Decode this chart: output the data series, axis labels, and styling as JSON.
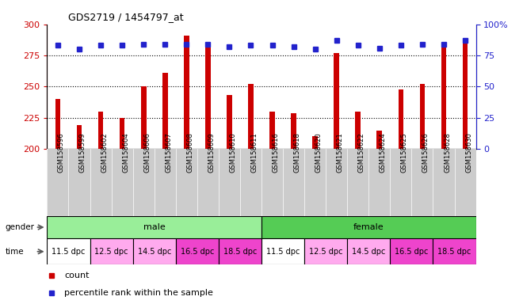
{
  "title": "GDS2719 / 1454797_at",
  "samples": [
    "GSM158596",
    "GSM158599",
    "GSM158602",
    "GSM158604",
    "GSM158606",
    "GSM158607",
    "GSM158608",
    "GSM158609",
    "GSM158610",
    "GSM158611",
    "GSM158616",
    "GSM158618",
    "GSM158620",
    "GSM158621",
    "GSM158622",
    "GSM158624",
    "GSM158625",
    "GSM158626",
    "GSM158628",
    "GSM158630"
  ],
  "counts": [
    240,
    219,
    230,
    225,
    250,
    261,
    291,
    285,
    243,
    252,
    230,
    229,
    210,
    277,
    230,
    215,
    248,
    252,
    285,
    288
  ],
  "percentiles": [
    83,
    80,
    83,
    83,
    84,
    84,
    84,
    84,
    82,
    83,
    83,
    82,
    80,
    87,
    83,
    81,
    83,
    84,
    84,
    87
  ],
  "ylim_left": [
    200,
    300
  ],
  "ylim_right": [
    0,
    100
  ],
  "yticks_left": [
    200,
    225,
    250,
    275,
    300
  ],
  "yticks_right": [
    0,
    25,
    50,
    75,
    100
  ],
  "bar_color": "#cc0000",
  "dot_color": "#2222cc",
  "male_color": "#99ee99",
  "female_color": "#55cc55",
  "bg_color": "#ffffff",
  "xticklabel_bg": "#cccccc",
  "time_colors": [
    "#ffffff",
    "#ffaaee",
    "#ffaaee",
    "#ee44cc",
    "#ee44cc",
    "#ffffff",
    "#ffaaee",
    "#ffaaee",
    "#ee44cc",
    "#ee44cc"
  ],
  "time_labels": [
    "11.5 dpc",
    "12.5 dpc",
    "14.5 dpc",
    "16.5 dpc",
    "18.5 dpc",
    "11.5 dpc",
    "12.5 dpc",
    "14.5 dpc",
    "16.5 dpc",
    "18.5 dpc"
  ],
  "bar_width": 0.25,
  "dot_size": 5
}
